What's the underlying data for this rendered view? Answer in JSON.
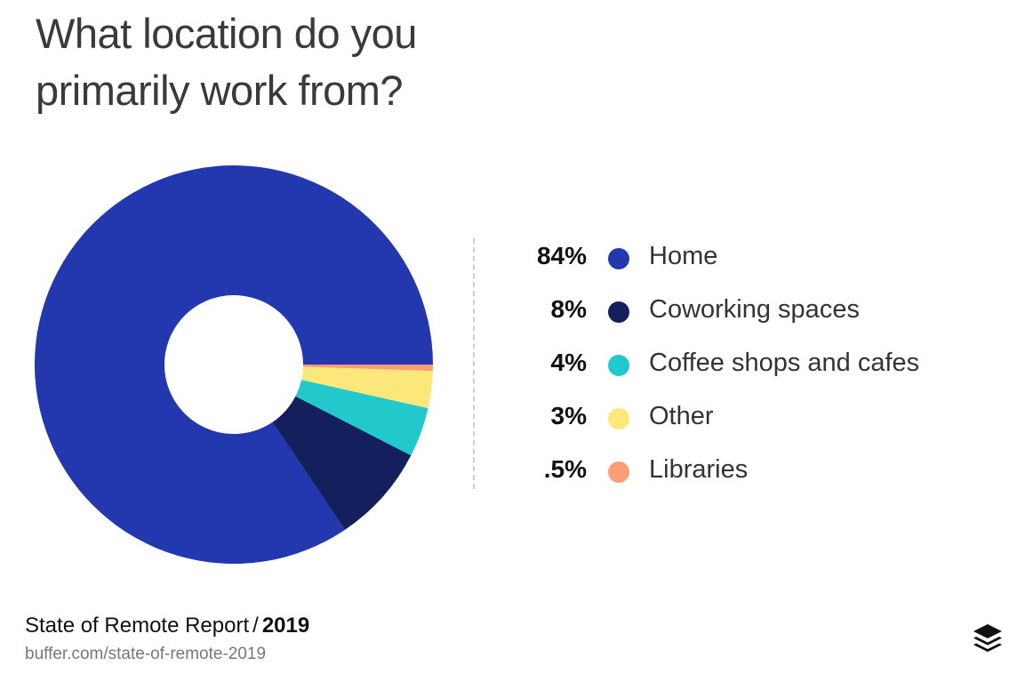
{
  "chart_data": {
    "type": "pie",
    "title": "What location do you primarily work from?",
    "categories": [
      "Home",
      "Coworking spaces",
      "Coffee shops and cafes",
      "Other",
      "Libraries"
    ],
    "values": [
      84,
      8,
      4,
      3,
      0.5
    ],
    "value_labels": [
      "84%",
      "8%",
      "4%",
      "3%",
      ".5%"
    ],
    "colors": [
      "#2338af",
      "#141f5e",
      "#22c9cc",
      "#fbe77a",
      "#fb9e75"
    ],
    "donut": true,
    "legend_placement": "right"
  },
  "footer": {
    "report": "State of Remote Report",
    "separator": "/",
    "year": "2019",
    "url": "buffer.com/state-of-remote-2019"
  },
  "logo": {
    "icon": "stacked-layers-icon",
    "color": "#111111"
  }
}
